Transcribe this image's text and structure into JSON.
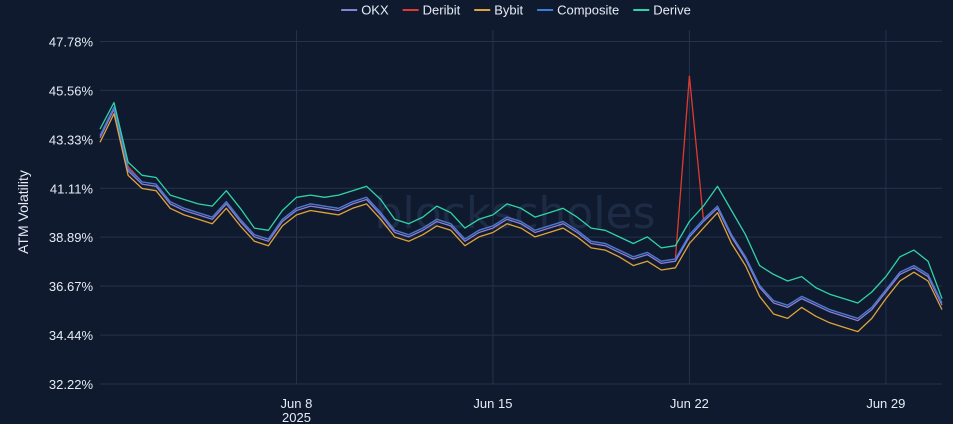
{
  "chart_data": {
    "type": "line",
    "ylabel": "ATM Volatility",
    "watermark": "blockscholes",
    "y_ticks": [
      "47.78%",
      "45.56%",
      "43.33%",
      "41.11%",
      "38.89%",
      "36.67%",
      "34.44%",
      "32.22%"
    ],
    "y_tick_values": [
      47.78,
      45.56,
      43.33,
      41.11,
      38.89,
      36.67,
      34.44,
      32.22
    ],
    "ylim": [
      32.22,
      48.3
    ],
    "xlim": [
      "2025-06-01",
      "2025-07-01"
    ],
    "x_ticks": [
      {
        "date": "2025-06-08",
        "label": "Jun 8",
        "sublabel": "2025"
      },
      {
        "date": "2025-06-15",
        "label": "Jun 15",
        "sublabel": ""
      },
      {
        "date": "2025-06-22",
        "label": "Jun 22",
        "sublabel": ""
      },
      {
        "date": "2025-06-29",
        "label": "Jun 29",
        "sublabel": ""
      }
    ],
    "grid": true,
    "legend_position": "top-center",
    "x": [
      "2025-06-01",
      "2025-06-01T12:00",
      "2025-06-02",
      "2025-06-02T12:00",
      "2025-06-03",
      "2025-06-03T12:00",
      "2025-06-04",
      "2025-06-04T12:00",
      "2025-06-05",
      "2025-06-05T12:00",
      "2025-06-06",
      "2025-06-06T12:00",
      "2025-06-07",
      "2025-06-07T12:00",
      "2025-06-08",
      "2025-06-08T12:00",
      "2025-06-09",
      "2025-06-09T12:00",
      "2025-06-10",
      "2025-06-10T12:00",
      "2025-06-11",
      "2025-06-11T12:00",
      "2025-06-12",
      "2025-06-12T12:00",
      "2025-06-13",
      "2025-06-13T12:00",
      "2025-06-14",
      "2025-06-14T12:00",
      "2025-06-15",
      "2025-06-15T12:00",
      "2025-06-16",
      "2025-06-16T12:00",
      "2025-06-17",
      "2025-06-17T12:00",
      "2025-06-18",
      "2025-06-18T12:00",
      "2025-06-19",
      "2025-06-19T12:00",
      "2025-06-20",
      "2025-06-20T12:00",
      "2025-06-21",
      "2025-06-21T12:00",
      "2025-06-22",
      "2025-06-22T12:00",
      "2025-06-23",
      "2025-06-23T12:00",
      "2025-06-24",
      "2025-06-24T12:00",
      "2025-06-25",
      "2025-06-25T12:00",
      "2025-06-26",
      "2025-06-26T12:00",
      "2025-06-27",
      "2025-06-27T12:00",
      "2025-06-28",
      "2025-06-28T12:00",
      "2025-06-29",
      "2025-06-29T12:00",
      "2025-06-30",
      "2025-06-30T12:00",
      "2025-07-01"
    ],
    "series": [
      {
        "name": "OKX",
        "color": "#8b7fd6",
        "values": [
          43.4,
          44.7,
          41.9,
          41.3,
          41.2,
          40.4,
          40.1,
          39.9,
          39.7,
          40.4,
          39.6,
          38.9,
          38.7,
          39.6,
          40.1,
          40.3,
          40.2,
          40.1,
          40.4,
          40.6,
          39.9,
          39.1,
          38.9,
          39.2,
          39.6,
          39.4,
          38.7,
          39.1,
          39.3,
          39.7,
          39.5,
          39.1,
          39.3,
          39.5,
          39.1,
          38.6,
          38.5,
          38.2,
          37.9,
          38.1,
          37.7,
          37.8,
          38.9,
          39.6,
          40.2,
          38.9,
          37.9,
          36.6,
          35.9,
          35.7,
          36.1,
          35.8,
          35.5,
          35.3,
          35.1,
          35.6,
          36.4,
          37.2,
          37.5,
          37.1,
          35.8
        ]
      },
      {
        "name": "Deribit",
        "color": "#e03a2f",
        "values": [
          43.5,
          44.8,
          42.1,
          41.4,
          41.3,
          40.5,
          40.2,
          40.0,
          39.8,
          40.5,
          39.7,
          39.0,
          38.8,
          39.7,
          40.2,
          40.4,
          40.3,
          40.2,
          40.5,
          40.7,
          40.0,
          39.2,
          39.0,
          39.3,
          39.7,
          39.5,
          38.8,
          39.2,
          39.4,
          39.8,
          39.6,
          39.2,
          39.4,
          39.6,
          39.2,
          38.7,
          38.6,
          38.3,
          38.0,
          38.2,
          37.8,
          37.9,
          46.2,
          39.7,
          40.3,
          39.0,
          38.0,
          36.7,
          36.0,
          35.8,
          36.2,
          35.9,
          35.6,
          35.4,
          35.2,
          35.7,
          36.5,
          37.3,
          37.6,
          37.2,
          35.9
        ]
      },
      {
        "name": "Bybit",
        "color": "#e0a23a",
        "values": [
          43.2,
          44.5,
          41.7,
          41.1,
          41.0,
          40.2,
          39.9,
          39.7,
          39.5,
          40.2,
          39.4,
          38.7,
          38.5,
          39.4,
          39.9,
          40.1,
          40.0,
          39.9,
          40.2,
          40.4,
          39.7,
          38.9,
          38.7,
          39.0,
          39.4,
          39.2,
          38.5,
          38.9,
          39.1,
          39.5,
          39.3,
          38.9,
          39.1,
          39.3,
          38.9,
          38.4,
          38.3,
          38.0,
          37.6,
          37.8,
          37.4,
          37.5,
          38.6,
          39.3,
          40.0,
          38.6,
          37.6,
          36.2,
          35.4,
          35.2,
          35.7,
          35.3,
          35.0,
          34.8,
          34.6,
          35.2,
          36.1,
          36.9,
          37.3,
          36.9,
          35.6
        ]
      },
      {
        "name": "Composite",
        "color": "#3b7ddd",
        "values": [
          43.5,
          44.8,
          42.0,
          41.4,
          41.3,
          40.5,
          40.2,
          40.0,
          39.8,
          40.5,
          39.7,
          39.0,
          38.8,
          39.7,
          40.2,
          40.4,
          40.3,
          40.2,
          40.5,
          40.7,
          40.0,
          39.2,
          39.0,
          39.3,
          39.7,
          39.5,
          38.8,
          39.2,
          39.4,
          39.8,
          39.6,
          39.2,
          39.4,
          39.6,
          39.2,
          38.7,
          38.6,
          38.3,
          38.0,
          38.2,
          37.8,
          37.9,
          39.0,
          39.7,
          40.3,
          39.0,
          38.0,
          36.7,
          36.0,
          35.8,
          36.2,
          35.9,
          35.6,
          35.4,
          35.2,
          35.7,
          36.5,
          37.3,
          37.6,
          37.2,
          35.9
        ]
      },
      {
        "name": "Derive",
        "color": "#2fd3a8",
        "values": [
          43.8,
          45.0,
          42.3,
          41.7,
          41.6,
          40.8,
          40.6,
          40.4,
          40.3,
          41.0,
          40.2,
          39.3,
          39.2,
          40.1,
          40.7,
          40.8,
          40.7,
          40.8,
          41.0,
          41.2,
          40.6,
          39.7,
          39.5,
          39.8,
          40.3,
          40.0,
          39.3,
          39.7,
          39.9,
          40.4,
          40.2,
          39.8,
          40.0,
          40.2,
          39.8,
          39.3,
          39.2,
          38.9,
          38.6,
          38.9,
          38.4,
          38.5,
          39.6,
          40.3,
          41.2,
          40.1,
          39.0,
          37.6,
          37.2,
          36.9,
          37.1,
          36.6,
          36.3,
          36.1,
          35.9,
          36.4,
          37.1,
          38.0,
          38.3,
          37.8,
          36.1
        ]
      }
    ]
  }
}
